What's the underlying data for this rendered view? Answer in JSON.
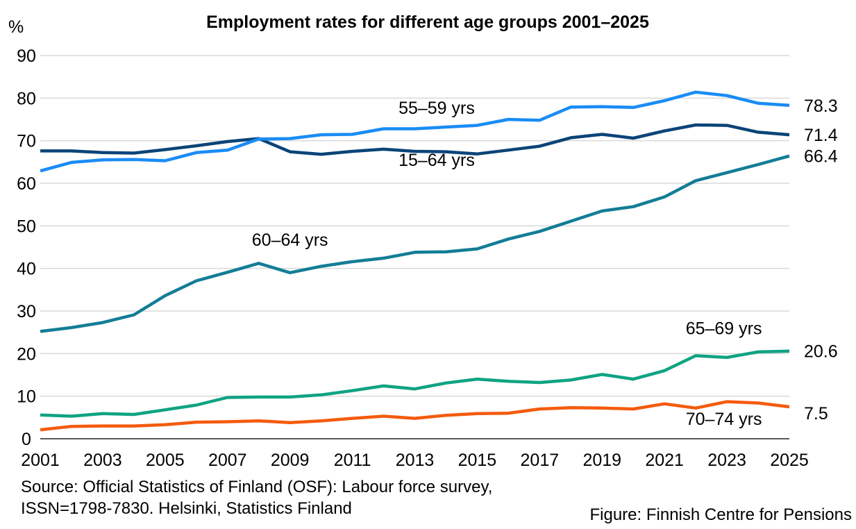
{
  "chart_data": {
    "type": "line",
    "title": "Employment rates for different age groups 2001–2025",
    "ylabel": "%",
    "xlabel": "",
    "ylim": [
      0,
      90
    ],
    "yticks": [
      0,
      10,
      20,
      30,
      40,
      50,
      60,
      70,
      80,
      90
    ],
    "x": [
      2001,
      2002,
      2003,
      2004,
      2005,
      2006,
      2007,
      2008,
      2009,
      2010,
      2011,
      2012,
      2013,
      2014,
      2015,
      2016,
      2017,
      2018,
      2019,
      2020,
      2021,
      2022,
      2023,
      2024,
      2025
    ],
    "xtick_labels": [
      "2001",
      "2003",
      "2005",
      "2007",
      "2009",
      "2011",
      "2013",
      "2015",
      "2017",
      "2019",
      "2021",
      "2023",
      "2025"
    ],
    "grid": true,
    "legend": "none (inline series labels)",
    "series": [
      {
        "name": "15–64 yrs",
        "color": "#0B4478",
        "values": [
          67.6,
          67.6,
          67.2,
          67.1,
          67.9,
          68.8,
          69.8,
          70.5,
          67.4,
          66.8,
          67.5,
          68.0,
          67.5,
          67.4,
          66.9,
          67.8,
          68.7,
          70.7,
          71.5,
          70.6,
          72.3,
          73.7,
          73.6,
          72.0,
          71.4
        ],
        "end_label": "71.4",
        "label_anchor_year": 2013.7,
        "label_anchor_value": 64.1
      },
      {
        "name": "55–59 yrs",
        "color": "#1A8CF5",
        "values": [
          62.9,
          64.9,
          65.5,
          65.6,
          65.3,
          67.2,
          67.8,
          70.4,
          70.5,
          71.4,
          71.5,
          72.8,
          72.8,
          73.2,
          73.6,
          75.0,
          74.8,
          77.9,
          78.0,
          77.8,
          79.4,
          81.4,
          80.6,
          78.8,
          78.3
        ],
        "end_label": "78.3",
        "label_anchor_year": 2013.7,
        "label_anchor_value": 76.3
      },
      {
        "name": "60–64 yrs",
        "color": "#137D96",
        "values": [
          25.2,
          26.1,
          27.3,
          29.1,
          33.6,
          37.1,
          39.1,
          41.2,
          39.0,
          40.5,
          41.6,
          42.4,
          43.8,
          43.9,
          44.6,
          46.9,
          48.7,
          51.1,
          53.5,
          54.5,
          56.8,
          60.6,
          62.5,
          64.4,
          66.4
        ],
        "end_label": "66.4",
        "label_anchor_year": 2009.0,
        "label_anchor_value": 45.3
      },
      {
        "name": "65–69 yrs",
        "color": "#0FA383",
        "values": [
          5.6,
          5.3,
          5.9,
          5.7,
          6.8,
          7.9,
          9.7,
          9.8,
          9.8,
          10.3,
          11.3,
          12.4,
          11.7,
          13.1,
          14.0,
          13.5,
          13.2,
          13.8,
          15.1,
          14.0,
          16.0,
          19.5,
          19.1,
          20.4,
          20.6
        ],
        "end_label": "20.6",
        "label_anchor_year": 2022.9,
        "label_anchor_value": 24.5
      },
      {
        "name": "70–74 yrs",
        "color": "#F45B0C",
        "values": [
          2.1,
          2.9,
          3.0,
          3.0,
          3.3,
          3.9,
          4.0,
          4.2,
          3.8,
          4.2,
          4.8,
          5.3,
          4.8,
          5.5,
          5.9,
          6.0,
          7.0,
          7.3,
          7.2,
          7.0,
          8.2,
          7.2,
          8.7,
          8.4,
          7.5
        ],
        "end_label": "7.5",
        "label_anchor_year": 2022.9,
        "label_anchor_value": 3.3
      }
    ]
  },
  "footer": {
    "source_line1": "Source: Official Statistics of Finland (OSF): Labour force survey,",
    "source_line2": "ISSN=1798-7830. Helsinki, Statistics Finland",
    "credit": "Figure: Finnish Centre for Pensions"
  }
}
